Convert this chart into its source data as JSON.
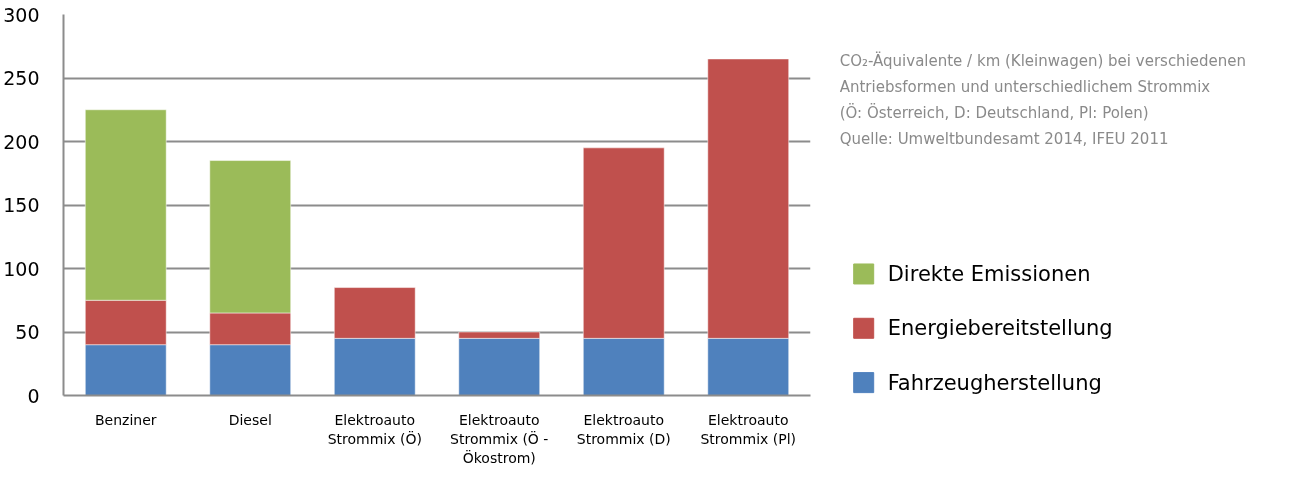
{
  "chart_data": {
    "type": "bar",
    "stacked": true,
    "categories": [
      "Benziner",
      "Diesel",
      "Elektroauto Strommix (Ö)",
      "Elektroauto Strommix (Ö - Ökostrom)",
      "Elektroauto Strommix (D)",
      "Elektroauto Strommix (Pl)"
    ],
    "series": [
      {
        "name": "Fahrzeugherstellung",
        "color": "#4f81bd",
        "values": [
          40,
          40,
          45,
          45,
          45,
          45
        ]
      },
      {
        "name": "Energiebereitstellung",
        "color": "#c0504d",
        "values": [
          35,
          25,
          40,
          5,
          150,
          220
        ]
      },
      {
        "name": "Direkte Emissionen",
        "color": "#9bbb59",
        "values": [
          150,
          120,
          null,
          null,
          null,
          null
        ]
      }
    ],
    "ylim": [
      0,
      300
    ],
    "yticks": [
      0,
      50,
      100,
      150,
      200,
      250,
      300
    ],
    "grid": "y",
    "legend": "right",
    "annotations": [
      "CO₂-Äquivalente / km (Kleinwagen) bei verschiedenen\nAntriebsformen und unterschiedlichem Strommix\n(Ö: Österreich, D: Deutschland, Pl: Polen)",
      "Quelle: Umweltbundesamt 2014, IFEU 2011"
    ]
  }
}
